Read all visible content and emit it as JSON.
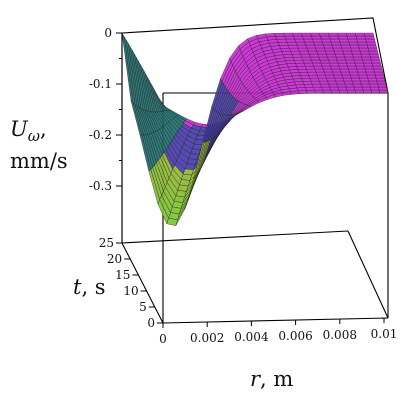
{
  "chart_data": {
    "type": "surface3d",
    "title": "",
    "zlabel": {
      "symbol": "U",
      "subscript": "ω",
      "comma": ",",
      "unit": "mm/s"
    },
    "ylabel": {
      "symbol": "t",
      "unit": ", s"
    },
    "xlabel": {
      "symbol": "r",
      "unit": ", m"
    },
    "z_ticks": [
      "0",
      "-0.1",
      "-0.2",
      "-0.3"
    ],
    "t_ticks": [
      "0",
      "5",
      "10",
      "15",
      "20",
      "25"
    ],
    "r_ticks": [
      "0",
      "0.002",
      "0.004",
      "0.006",
      "0.008",
      "0.01"
    ],
    "r_range": [
      0,
      0.01
    ],
    "t_range": [
      0,
      25
    ],
    "z_range": [
      -0.37,
      0
    ],
    "surface_minimum": {
      "r": 0.002,
      "t": 25,
      "u": -0.37
    },
    "colormap": [
      "#2a2a2a",
      "#1f6b6e",
      "#4a3fa8",
      "#c026d3",
      "#8fc23a"
    ]
  }
}
